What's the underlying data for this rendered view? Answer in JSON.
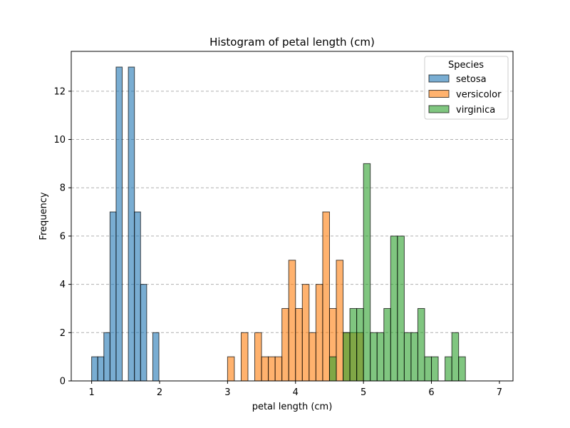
{
  "chart_data": {
    "type": "bar",
    "title": "Histogram of petal length (cm)",
    "xlabel": "petal length (cm)",
    "ylabel": "Frequency",
    "xlim": [
      0.7,
      7.2
    ],
    "ylim": [
      0,
      13.65
    ],
    "xticks": [
      "1",
      "2",
      "3",
      "4",
      "5",
      "6",
      "7"
    ],
    "yticks": [
      "0",
      "2",
      "4",
      "6",
      "8",
      "10",
      "12"
    ],
    "grid": "y-dashed",
    "legend": {
      "title": "Species",
      "placement": "top-right"
    },
    "series": [
      {
        "name": "setosa",
        "color": "#1f77b4",
        "bin_width": 0.09,
        "bins": [
          {
            "x": 1.0,
            "count": 1
          },
          {
            "x": 1.09,
            "count": 1
          },
          {
            "x": 1.18,
            "count": 2
          },
          {
            "x": 1.27,
            "count": 7
          },
          {
            "x": 1.36,
            "count": 13
          },
          {
            "x": 1.45,
            "count": 0
          },
          {
            "x": 1.54,
            "count": 13
          },
          {
            "x": 1.63,
            "count": 7
          },
          {
            "x": 1.72,
            "count": 4
          },
          {
            "x": 1.81,
            "count": 0
          },
          {
            "x": 1.9,
            "count": 2
          }
        ]
      },
      {
        "name": "versicolor",
        "color": "#ff7f0e",
        "bin_width": 0.1,
        "bins": [
          {
            "x": 3.0,
            "count": 1
          },
          {
            "x": 3.1,
            "count": 0
          },
          {
            "x": 3.2,
            "count": 2
          },
          {
            "x": 3.3,
            "count": 0
          },
          {
            "x": 3.4,
            "count": 2
          },
          {
            "x": 3.5,
            "count": 1
          },
          {
            "x": 3.6,
            "count": 1
          },
          {
            "x": 3.7,
            "count": 1
          },
          {
            "x": 3.8,
            "count": 3
          },
          {
            "x": 3.9,
            "count": 5
          },
          {
            "x": 4.0,
            "count": 3
          },
          {
            "x": 4.1,
            "count": 4
          },
          {
            "x": 4.2,
            "count": 2
          },
          {
            "x": 4.3,
            "count": 4
          },
          {
            "x": 4.4,
            "count": 7
          },
          {
            "x": 4.5,
            "count": 3
          },
          {
            "x": 4.6,
            "count": 5
          },
          {
            "x": 4.7,
            "count": 2
          },
          {
            "x": 4.8,
            "count": 2
          },
          {
            "x": 4.9,
            "count": 2
          }
        ]
      },
      {
        "name": "virginica",
        "color": "#2ca02c",
        "bin_width": 0.1,
        "bins": [
          {
            "x": 4.5,
            "count": 1
          },
          {
            "x": 4.6,
            "count": 0
          },
          {
            "x": 4.7,
            "count": 2
          },
          {
            "x": 4.8,
            "count": 3
          },
          {
            "x": 4.9,
            "count": 3
          },
          {
            "x": 5.0,
            "count": 9
          },
          {
            "x": 5.1,
            "count": 2
          },
          {
            "x": 5.2,
            "count": 2
          },
          {
            "x": 5.3,
            "count": 3
          },
          {
            "x": 5.4,
            "count": 6
          },
          {
            "x": 5.5,
            "count": 6
          },
          {
            "x": 5.6,
            "count": 2
          },
          {
            "x": 5.7,
            "count": 2
          },
          {
            "x": 5.8,
            "count": 3
          },
          {
            "x": 5.9,
            "count": 1
          },
          {
            "x": 6.0,
            "count": 1
          },
          {
            "x": 6.1,
            "count": 0
          },
          {
            "x": 6.2,
            "count": 1
          },
          {
            "x": 6.3,
            "count": 2
          },
          {
            "x": 6.4,
            "count": 1
          }
        ]
      }
    ]
  }
}
